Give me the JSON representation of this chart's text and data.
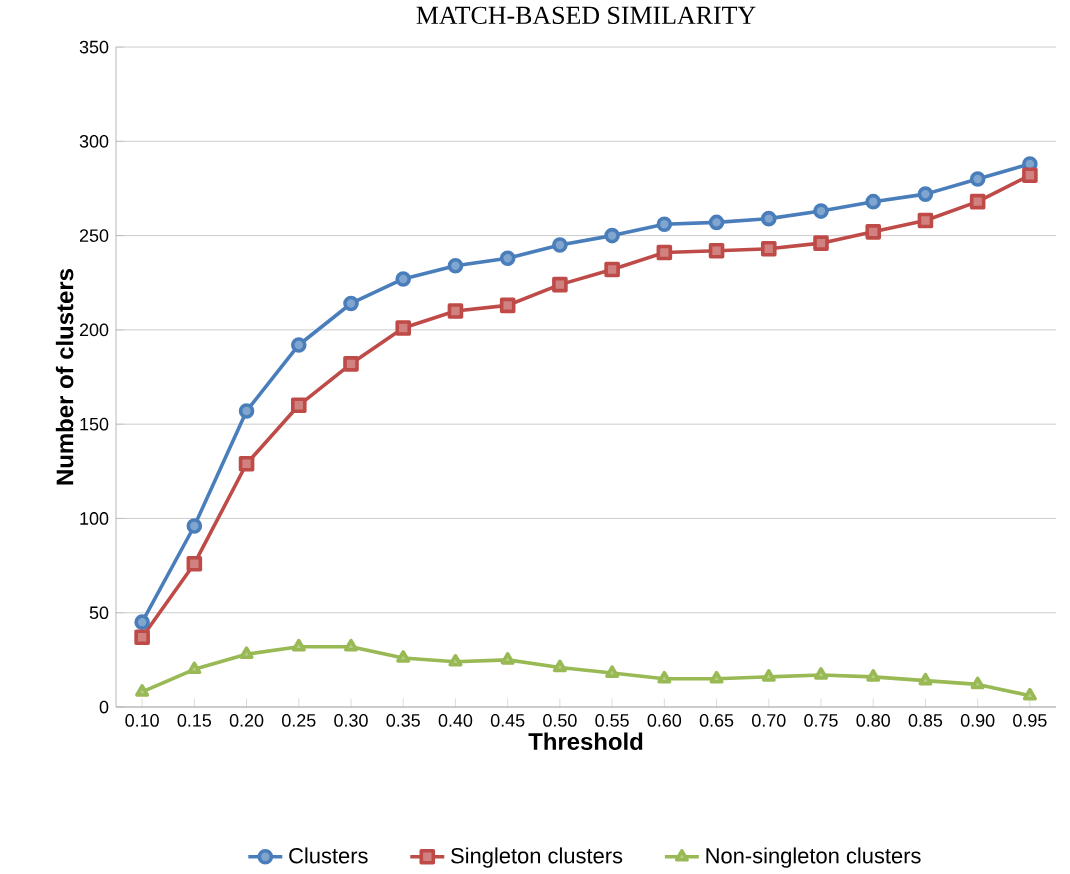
{
  "chart_data": {
    "type": "line",
    "title": "MATCH-BASED SIMILARITY",
    "xlabel": "Threshold",
    "ylabel": "Number of clusters",
    "categories": [
      "0.10",
      "0.15",
      "0.20",
      "0.25",
      "0.30",
      "0.35",
      "0.40",
      "0.45",
      "0.50",
      "0.55",
      "0.60",
      "0.65",
      "0.70",
      "0.75",
      "0.80",
      "0.85",
      "0.90",
      "0.95"
    ],
    "series": [
      {
        "name": "Clusters",
        "color": "#4a7ebb",
        "marker": "circle",
        "values": [
          45,
          96,
          157,
          192,
          214,
          227,
          234,
          238,
          245,
          250,
          256,
          257,
          259,
          263,
          268,
          272,
          280,
          288
        ]
      },
      {
        "name": "Singleton clusters",
        "color": "#be4b48",
        "marker": "square",
        "values": [
          37,
          76,
          129,
          160,
          182,
          201,
          210,
          213,
          224,
          232,
          241,
          242,
          243,
          246,
          252,
          258,
          268,
          282
        ]
      },
      {
        "name": "Non-singleton clusters",
        "color": "#98b954",
        "marker": "triangle",
        "values": [
          8,
          20,
          28,
          32,
          32,
          26,
          24,
          25,
          21,
          18,
          15,
          15,
          16,
          17,
          16,
          14,
          12,
          6
        ]
      }
    ],
    "ylim": [
      0,
      350
    ],
    "yticks": [
      0,
      50,
      100,
      150,
      200,
      250,
      300,
      350
    ],
    "grid": "y",
    "legend": "bottom"
  }
}
